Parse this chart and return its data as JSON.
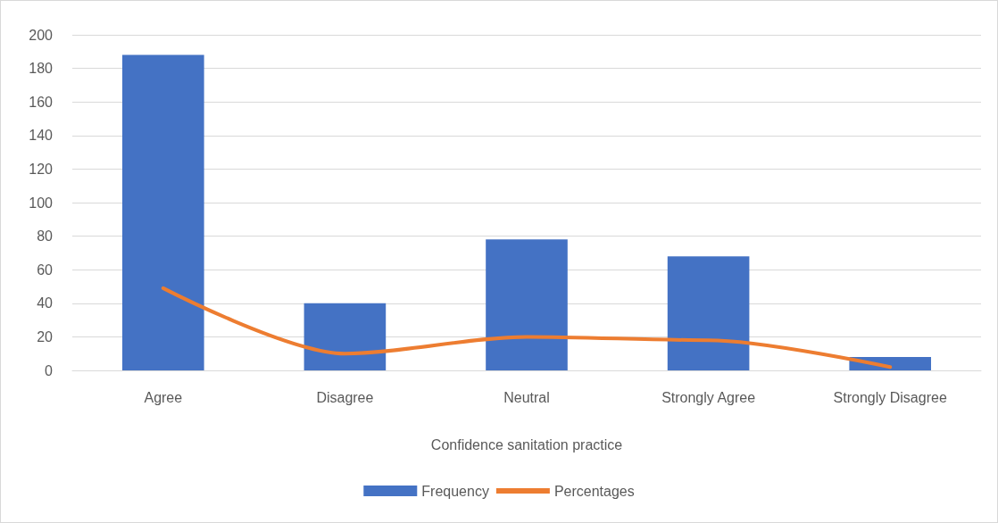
{
  "chart_data": {
    "type": "bar",
    "xlabel": "Confidence sanitation practice",
    "categories": [
      "Agree",
      "Disagree",
      "Neutral",
      "Strongly Agree",
      "Strongly Disagree"
    ],
    "series": [
      {
        "name": "Frequency",
        "color": "#4472c4",
        "values": [
          188,
          40,
          78,
          68,
          8
        ]
      },
      {
        "name": "Percentages",
        "type": "line",
        "color": "#ed7d31",
        "values": [
          49,
          10,
          20,
          18,
          2
        ]
      }
    ],
    "ylim": [
      0,
      200
    ],
    "yticks": [
      0,
      20,
      40,
      60,
      80,
      100,
      120,
      140,
      160,
      180,
      200
    ],
    "grid": "y",
    "legend": "bottom",
    "marker": "none"
  }
}
